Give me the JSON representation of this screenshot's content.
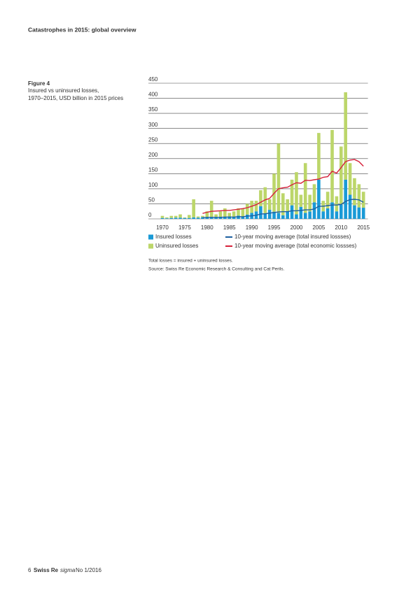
{
  "header": "Catastrophes in 2015: global overview",
  "figure_label": "Figure 4",
  "caption": [
    "Insured vs uninsured losses,",
    "1970–2015, USD billion in 2015 prices"
  ],
  "notes": [
    "Total losses = insured + uninsured losses.",
    "Source: Swiss Re Economic Research & Consulting and Cat Perils."
  ],
  "footer": {
    "page": "6",
    "brand": "Swiss Re",
    "publication": "sigma",
    "issue": "No 1/2016"
  },
  "chart_data": {
    "type": "bar",
    "stacked": true,
    "x": [
      1970,
      1971,
      1972,
      1973,
      1974,
      1975,
      1976,
      1977,
      1978,
      1979,
      1980,
      1981,
      1982,
      1983,
      1984,
      1985,
      1986,
      1987,
      1988,
      1989,
      1990,
      1991,
      1992,
      1993,
      1994,
      1995,
      1996,
      1997,
      1998,
      1999,
      2000,
      2001,
      2002,
      2003,
      2004,
      2005,
      2006,
      2007,
      2008,
      2009,
      2010,
      2011,
      2012,
      2013,
      2014,
      2015
    ],
    "xlim": [
      1969,
      2016
    ],
    "xticks": [
      1970,
      1975,
      1980,
      1985,
      1990,
      1995,
      2000,
      2005,
      2010,
      2015
    ],
    "ylim": [
      0,
      450
    ],
    "yticks": [
      0,
      50,
      100,
      150,
      200,
      250,
      300,
      350,
      400,
      450
    ],
    "grid": true,
    "series": [
      {
        "name": "Insured losses",
        "kind": "bar",
        "color": "#1a9ad6",
        "values": [
          3,
          2,
          3,
          4,
          4,
          3,
          3,
          5,
          4,
          6,
          5,
          4,
          5,
          7,
          6,
          8,
          6,
          11,
          8,
          14,
          20,
          25,
          42,
          19,
          30,
          24,
          20,
          12,
          26,
          45,
          15,
          40,
          20,
          25,
          55,
          130,
          25,
          35,
          55,
          25,
          48,
          130,
          80,
          45,
          38,
          37
        ]
      },
      {
        "name": "Uninsured losses",
        "kind": "bar",
        "color": "#bcd66a",
        "values": [
          7,
          3,
          7,
          6,
          11,
          2,
          10,
          60,
          4,
          4,
          20,
          56,
          10,
          18,
          29,
          12,
          19,
          24,
          27,
          36,
          40,
          35,
          53,
          86,
          35,
          126,
          230,
          73,
          39,
          85,
          140,
          40,
          165,
          55,
          60,
          155,
          35,
          55,
          240,
          50,
          192,
          290,
          105,
          90,
          77,
          53
        ]
      },
      {
        "name": "10-year moving average (total insured lossses)",
        "kind": "line",
        "color": "#1d5fa0",
        "values": [
          null,
          null,
          null,
          null,
          null,
          null,
          null,
          null,
          null,
          4,
          5,
          5,
          5,
          5,
          6,
          6,
          6,
          7,
          7,
          9,
          10,
          12,
          16,
          17,
          19,
          21,
          23,
          24,
          24,
          27,
          27,
          28,
          30,
          30,
          33,
          42,
          42,
          44,
          46,
          46,
          48,
          58,
          64,
          65,
          63,
          55
        ]
      },
      {
        "name": "10-year moving average (total economic lossses)",
        "kind": "line",
        "color": "#d6203a",
        "values": [
          null,
          null,
          null,
          null,
          null,
          null,
          null,
          null,
          null,
          18,
          22,
          25,
          26,
          27,
          28,
          28,
          30,
          32,
          34,
          37,
          42,
          47,
          55,
          63,
          68,
          85,
          100,
          103,
          105,
          113,
          120,
          118,
          128,
          127,
          130,
          132,
          138,
          140,
          158,
          152,
          170,
          190,
          195,
          197,
          190,
          175
        ]
      }
    ]
  }
}
